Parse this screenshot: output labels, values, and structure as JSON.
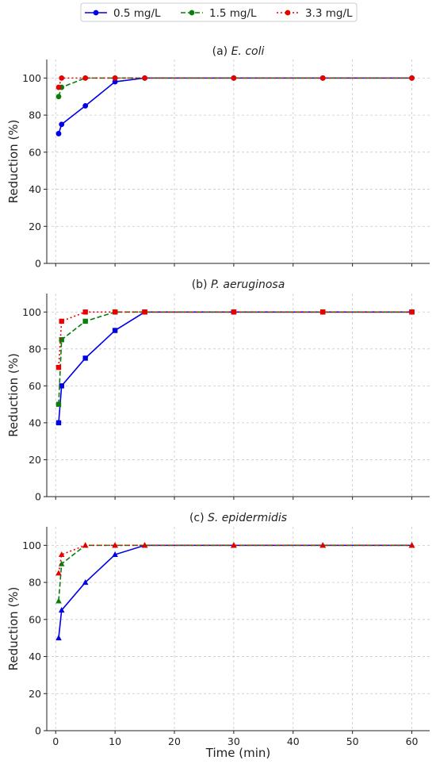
{
  "legend": {
    "placement": "top-center",
    "entries": [
      {
        "label": "0.5 mg/L",
        "color": "#0000e6",
        "dash": "solid"
      },
      {
        "label": "1.5 mg/L",
        "color": "#0a7d0a",
        "dash": "dashed"
      },
      {
        "label": "3.3 mg/L",
        "color": "#e60000",
        "dash": "dotted"
      }
    ]
  },
  "chart_data": [
    {
      "type": "line",
      "title_prefix": "(a)",
      "title_organism": "E.  coli",
      "marker": "circle",
      "xlabel": "",
      "ylabel": "Reduction (%)",
      "xlim": [
        -1.5,
        63
      ],
      "ylim": [
        0,
        110
      ],
      "xticks": [
        0,
        10,
        20,
        30,
        40,
        50,
        60
      ],
      "yticks": [
        0,
        20,
        40,
        60,
        80,
        100
      ],
      "grid": true,
      "x": [
        0.5,
        1,
        5,
        10,
        15,
        30,
        45,
        60
      ],
      "series": [
        {
          "name": "0.5 mg/L",
          "values": [
            70,
            75,
            85,
            98,
            100,
            100,
            100,
            100
          ]
        },
        {
          "name": "1.5 mg/L",
          "values": [
            90,
            95,
            100,
            100,
            100,
            100,
            100,
            100
          ]
        },
        {
          "name": "3.3 mg/L",
          "values": [
            95,
            100,
            100,
            100,
            100,
            100,
            100,
            100
          ]
        }
      ]
    },
    {
      "type": "line",
      "title_prefix": "(b)",
      "title_organism": "P.  aeruginosa",
      "marker": "square",
      "xlabel": "",
      "ylabel": "Reduction (%)",
      "xlim": [
        -1.5,
        63
      ],
      "ylim": [
        0,
        110
      ],
      "xticks": [
        0,
        10,
        20,
        30,
        40,
        50,
        60
      ],
      "yticks": [
        0,
        20,
        40,
        60,
        80,
        100
      ],
      "grid": true,
      "x": [
        0.5,
        1,
        5,
        10,
        15,
        30,
        45,
        60
      ],
      "series": [
        {
          "name": "0.5 mg/L",
          "values": [
            40,
            60,
            75,
            90,
            100,
            100,
            100,
            100
          ]
        },
        {
          "name": "1.5 mg/L",
          "values": [
            50,
            85,
            95,
            100,
            100,
            100,
            100,
            100
          ]
        },
        {
          "name": "3.3 mg/L",
          "values": [
            70,
            95,
            100,
            100,
            100,
            100,
            100,
            100
          ]
        }
      ]
    },
    {
      "type": "line",
      "title_prefix": "(c)",
      "title_organism": "S.  epidermidis",
      "marker": "triangle",
      "xlabel": "Time (min)",
      "ylabel": "Reduction (%)",
      "xlim": [
        -1.5,
        63
      ],
      "ylim": [
        0,
        110
      ],
      "xticks": [
        0,
        10,
        20,
        30,
        40,
        50,
        60
      ],
      "yticks": [
        0,
        20,
        40,
        60,
        80,
        100
      ],
      "grid": true,
      "x": [
        0.5,
        1,
        5,
        10,
        15,
        30,
        45,
        60
      ],
      "series": [
        {
          "name": "0.5 mg/L",
          "values": [
            50,
            65,
            80,
            95,
            100,
            100,
            100,
            100
          ]
        },
        {
          "name": "1.5 mg/L",
          "values": [
            70,
            90,
            100,
            100,
            100,
            100,
            100,
            100
          ]
        },
        {
          "name": "3.3 mg/L",
          "values": [
            85,
            95,
            100,
            100,
            100,
            100,
            100,
            100
          ]
        }
      ]
    }
  ]
}
